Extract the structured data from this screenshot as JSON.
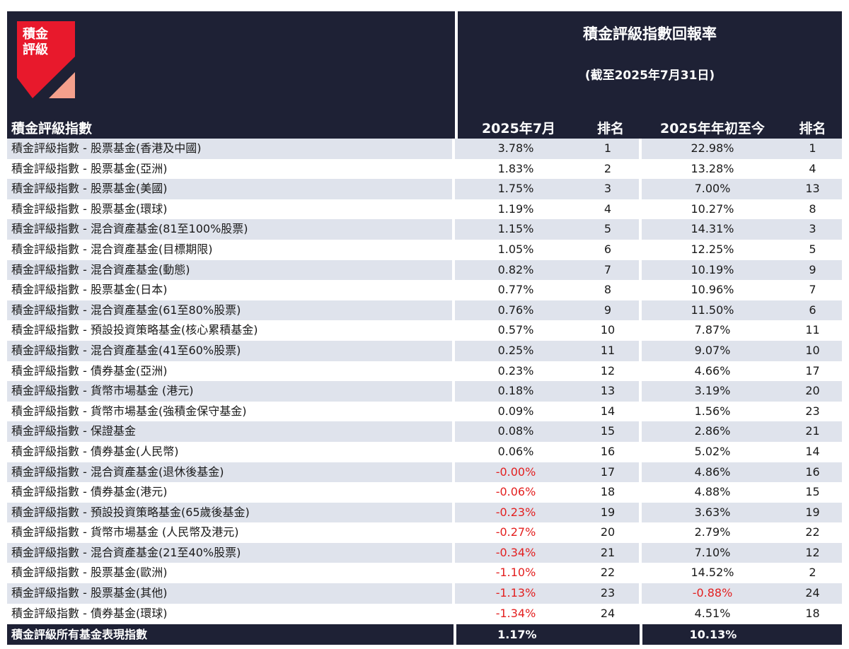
{
  "brand": {
    "logo_line1": "積金",
    "logo_line2": "評級",
    "logo_red": "#e8192c",
    "logo_salmon": "#f4a08c",
    "header_bg": "#1e2135"
  },
  "header": {
    "left_title": "積金評級指數",
    "right_title": "積金評級指數回報率",
    "subtitle": "(截至2025年7月31日)",
    "columns": [
      "2025年7月",
      "排名",
      "2025年年初至今",
      "排名"
    ]
  },
  "rows": [
    {
      "name": "積金評級指數 - 股票基金(香港及中國)",
      "jul": "3.78%",
      "jul_rank": "1",
      "ytd": "22.98%",
      "ytd_rank": "1"
    },
    {
      "name": "積金評級指數 - 股票基金(亞洲)",
      "jul": "1.83%",
      "jul_rank": "2",
      "ytd": "13.28%",
      "ytd_rank": "4"
    },
    {
      "name": "積金評級指數 - 股票基金(美國)",
      "jul": "1.75%",
      "jul_rank": "3",
      "ytd": "7.00%",
      "ytd_rank": "13"
    },
    {
      "name": "積金評級指數 - 股票基金(環球)",
      "jul": "1.19%",
      "jul_rank": "4",
      "ytd": "10.27%",
      "ytd_rank": "8"
    },
    {
      "name": "積金評級指數 - 混合資產基金(81至100%股票)",
      "jul": "1.15%",
      "jul_rank": "5",
      "ytd": "14.31%",
      "ytd_rank": "3"
    },
    {
      "name": "積金評級指數 - 混合資產基金(目標期限)",
      "jul": "1.05%",
      "jul_rank": "6",
      "ytd": "12.25%",
      "ytd_rank": "5"
    },
    {
      "name": "積金評級指數 - 混合資產基金(動態)",
      "jul": "0.82%",
      "jul_rank": "7",
      "ytd": "10.19%",
      "ytd_rank": "9"
    },
    {
      "name": "積金評級指數 - 股票基金(日本)",
      "jul": "0.77%",
      "jul_rank": "8",
      "ytd": "10.96%",
      "ytd_rank": "7"
    },
    {
      "name": "積金評級指數 - 混合資產基金(61至80%股票)",
      "jul": "0.76%",
      "jul_rank": "9",
      "ytd": "11.50%",
      "ytd_rank": "6"
    },
    {
      "name": "積金評級指數 - 預設投資策略基金(核心累積基金)",
      "jul": "0.57%",
      "jul_rank": "10",
      "ytd": "7.87%",
      "ytd_rank": "11"
    },
    {
      "name": "積金評級指數 - 混合資產基金(41至60%股票)",
      "jul": "0.25%",
      "jul_rank": "11",
      "ytd": "9.07%",
      "ytd_rank": "10"
    },
    {
      "name": "積金評級指數 - 債券基金(亞洲)",
      "jul": "0.23%",
      "jul_rank": "12",
      "ytd": "4.66%",
      "ytd_rank": "17"
    },
    {
      "name": "積金評級指數 - 貨幣市場基金 (港元)",
      "jul": "0.18%",
      "jul_rank": "13",
      "ytd": "3.19%",
      "ytd_rank": "20"
    },
    {
      "name": "積金評級指數 - 貨幣市場基金(強積金保守基金)",
      "jul": "0.09%",
      "jul_rank": "14",
      "ytd": "1.56%",
      "ytd_rank": "23"
    },
    {
      "name": "積金評級指數 - 保證基金",
      "jul": "0.08%",
      "jul_rank": "15",
      "ytd": "2.86%",
      "ytd_rank": "21"
    },
    {
      "name": "積金評級指數 - 債券基金(人民幣)",
      "jul": "0.06%",
      "jul_rank": "16",
      "ytd": "5.02%",
      "ytd_rank": "14"
    },
    {
      "name": "積金評級指數 - 混合資產基金(退休後基金)",
      "jul": "-0.00%",
      "jul_rank": "17",
      "ytd": "4.86%",
      "ytd_rank": "16"
    },
    {
      "name": "積金評級指數 - 債券基金(港元)",
      "jul": "-0.06%",
      "jul_rank": "18",
      "ytd": "4.88%",
      "ytd_rank": "15"
    },
    {
      "name": "積金評級指數 - 預設投資策略基金(65歲後基金)",
      "jul": "-0.23%",
      "jul_rank": "19",
      "ytd": "3.63%",
      "ytd_rank": "19"
    },
    {
      "name": "積金評級指數 - 貨幣市場基金 (人民幣及港元)",
      "jul": "-0.27%",
      "jul_rank": "20",
      "ytd": "2.79%",
      "ytd_rank": "22"
    },
    {
      "name": "積金評級指數 - 混合資產基金(21至40%股票)",
      "jul": "-0.34%",
      "jul_rank": "21",
      "ytd": "7.10%",
      "ytd_rank": "12"
    },
    {
      "name": "積金評級指數 - 股票基金(歐洲)",
      "jul": "-1.10%",
      "jul_rank": "22",
      "ytd": "14.52%",
      "ytd_rank": "2"
    },
    {
      "name": "積金評級指數 - 股票基金(其他)",
      "jul": "-1.13%",
      "jul_rank": "23",
      "ytd": "-0.88%",
      "ytd_rank": "24"
    },
    {
      "name": "積金評級指數 - 債券基金(環球)",
      "jul": "-1.34%",
      "jul_rank": "24",
      "ytd": "4.51%",
      "ytd_rank": "18"
    }
  ],
  "total": {
    "name": "積金評級所有基金表現指數",
    "jul": "1.17%",
    "ytd": "10.13%"
  },
  "colors": {
    "negative": "#e32020",
    "alt_row": "#dfe3ec"
  }
}
